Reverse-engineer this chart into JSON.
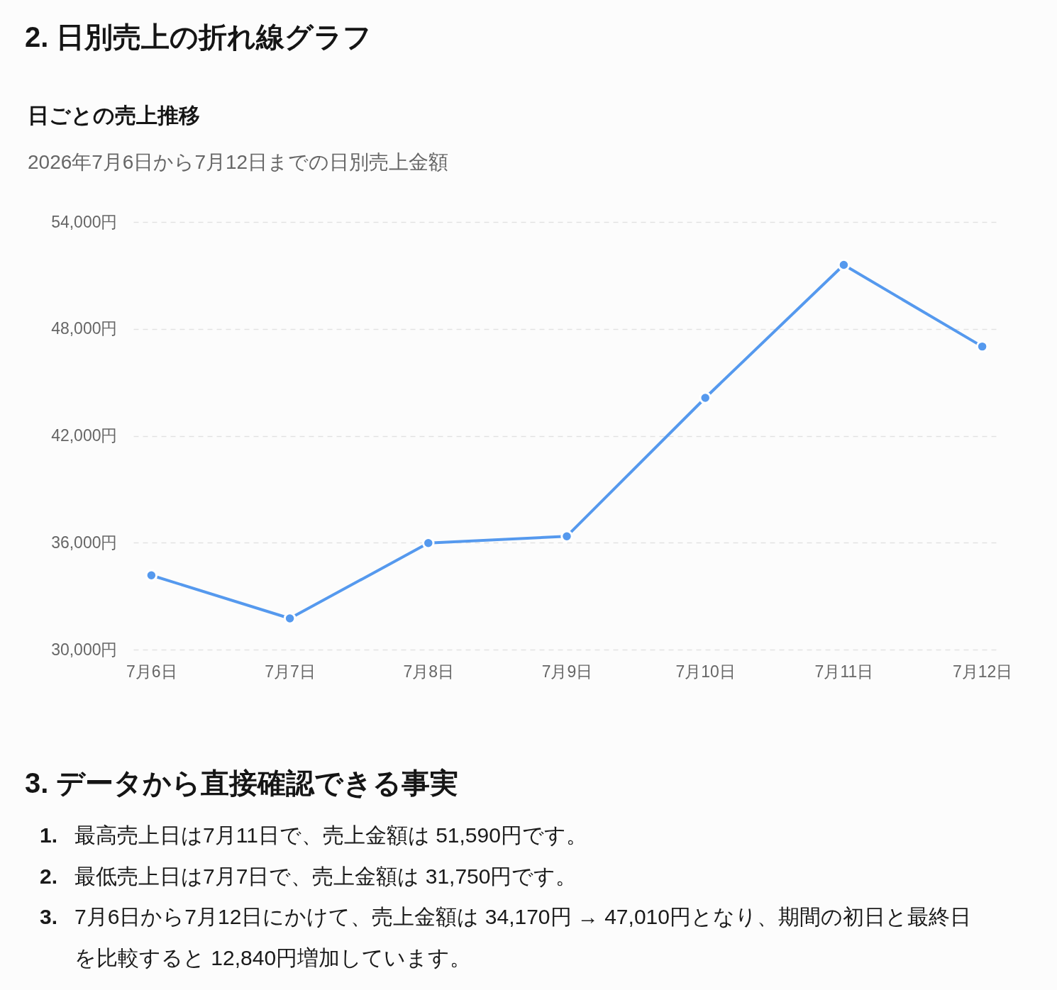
{
  "chart_data": {
    "type": "line",
    "title": "日ごとの売上推移",
    "subtitle": "2026年7月6日から7月12日までの日別売上金額",
    "categories": [
      "7月6日",
      "7月7日",
      "7月8日",
      "7月9日",
      "7月10日",
      "7月11日",
      "7月12日"
    ],
    "series": [
      {
        "color": "#5599ee",
        "values": [
          34170,
          31750,
          35980,
          36360,
          44130,
          51590,
          47010
        ]
      }
    ],
    "ylim": [
      30000,
      54000
    ],
    "yticks": [
      {
        "value": 30000,
        "label": "30,000円"
      },
      {
        "value": 36000,
        "label": "36,000円"
      },
      {
        "value": 42000,
        "label": "42,000円"
      },
      {
        "value": 48000,
        "label": "48,000円"
      },
      {
        "value": 54000,
        "label": "54,000円"
      }
    ],
    "grid": "y",
    "marker": "circle",
    "line_style": "solid",
    "annotations": [
      "2. 日別売上の折れ線グラフ",
      "3. データから直接確認できる事実",
      "1. 最高売上日は7月11日で、売上金額は 51,590円です。",
      "2. 最低売上日は7月7日で、売上金額は 31,750円です。",
      "3. 7月6日から7月12日にかけて、売上金額は 34,170円 → 47,010円となり、期間の初日と最終日を比較すると 12,840円増加しています。"
    ]
  }
}
